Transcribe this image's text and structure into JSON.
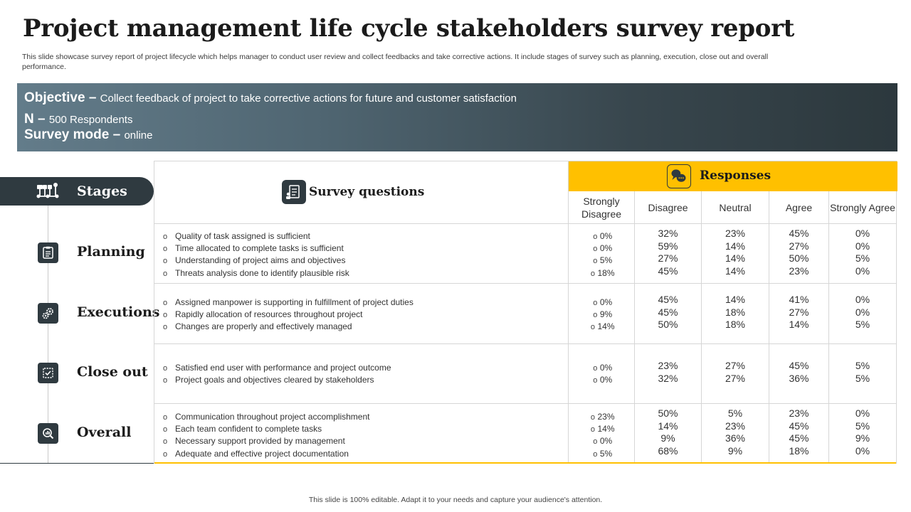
{
  "title": "Project management life cycle stakeholders survey report",
  "subtitle": "This slide showcase survey report of project lifecycle which helps manager to conduct user review and collect feedbacks and take corrective actions. It include stages of survey such as planning, execution, close out and overall performance.",
  "banner": {
    "objective_key": "Objective – ",
    "objective_value": "Collect feedback of project to take corrective actions for future  and customer satisfaction",
    "n_key": "N – ",
    "n_value": "500 Respondents",
    "mode_key": "Survey mode – ",
    "mode_value": "online"
  },
  "stages_header": "Stages",
  "survey_questions_header": "Survey questions",
  "responses_header": "Responses",
  "columns": [
    "Strongly Disagree",
    "Disagree",
    "Neutral",
    "Agree",
    "Strongly Agree"
  ],
  "stages": [
    {
      "name": "Planning",
      "icon": "clipboard-icon",
      "questions": [
        "Quality of task assigned is sufficient",
        "Time allocated to complete tasks is sufficient",
        "Understanding  of project aims and objectives",
        "Threats  analysis done to identify plausible risk"
      ],
      "strongly_disagree": [
        "0%",
        "0%",
        "5%",
        "18%"
      ],
      "disagree": [
        "32%",
        "59%",
        "27%",
        "45%"
      ],
      "neutral": [
        "23%",
        "14%",
        "14%",
        "14%"
      ],
      "agree": [
        "45%",
        "27%",
        "50%",
        "23%"
      ],
      "strongly_agree": [
        "0%",
        "0%",
        "5%",
        "0%"
      ]
    },
    {
      "name": "Executions",
      "icon": "gears-icon",
      "questions": [
        "Assigned manpower  is supporting  in fulfillment of project duties",
        "Rapidly allocation of resources throughout  project",
        "Changes  are properly  and  effectively  managed"
      ],
      "strongly_disagree": [
        "0%",
        "9%",
        "14%"
      ],
      "disagree": [
        "45%",
        "45%",
        "50%"
      ],
      "neutral": [
        "14%",
        "18%",
        "18%"
      ],
      "agree": [
        "41%",
        "27%",
        "14%"
      ],
      "strongly_agree": [
        "0%",
        "0%",
        "5%"
      ]
    },
    {
      "name": "Close out",
      "icon": "checklist-icon",
      "questions": [
        "Satisfied end user with performance  and  project outcome",
        "Project goals and objectives  cleared by stakeholders"
      ],
      "strongly_disagree": [
        "0%",
        "0%"
      ],
      "disagree": [
        "23%",
        "32%"
      ],
      "neutral": [
        "27%",
        "27%"
      ],
      "agree": [
        "45%",
        "36%"
      ],
      "strongly_agree": [
        "5%",
        "5%"
      ]
    },
    {
      "name": "Overall",
      "icon": "magnifier-report-icon",
      "questions": [
        "Communication  throughout  project accomplishment",
        "Each team confident to complete tasks",
        "Necessary  support provided  by management",
        "Adequate  and effective  project documentation"
      ],
      "strongly_disagree": [
        "23%",
        "14%",
        "0%",
        "5%"
      ],
      "disagree": [
        "50%",
        "14%",
        "9%",
        "68%"
      ],
      "neutral": [
        "5%",
        "23%",
        "36%",
        "9%"
      ],
      "agree": [
        "23%",
        "45%",
        "45%",
        "18%"
      ],
      "strongly_agree": [
        "0%",
        "5%",
        "9%",
        "0%"
      ]
    }
  ],
  "colors": {
    "dark": "#2f3a40",
    "accent": "#ffc000",
    "banner_left": "#637c8a",
    "banner_right": "#2c383d"
  },
  "footer": "This slide is 100% editable.  Adapt it to your needs and capture your audience's attention."
}
